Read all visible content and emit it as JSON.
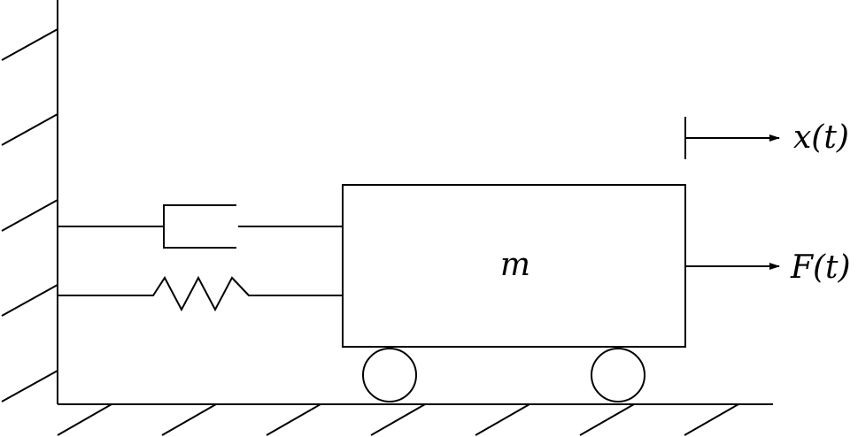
{
  "labels": {
    "mass": "m",
    "displacement": "x(t)",
    "force": "F(t)"
  },
  "colors": {
    "ink": "#000000",
    "background": "#ffffff"
  }
}
